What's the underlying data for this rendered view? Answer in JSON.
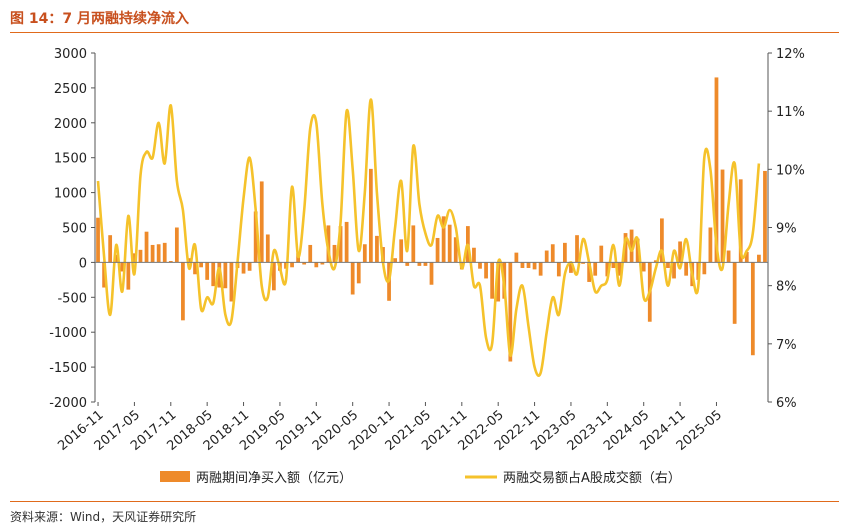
{
  "title": "图 14：7 月两融持续净流入",
  "source": "资料来源：Wind，天风证券研究所",
  "colors": {
    "bar": "#ee8a2a",
    "line": "#f5c22b",
    "accent": "#e06a1b"
  },
  "chart_data": {
    "type": "bar+line",
    "title": "7 月两融持续净流入",
    "x_tick_labels": [
      "2016-11",
      "2017-05",
      "2017-11",
      "2018-05",
      "2018-11",
      "2019-05",
      "2019-11",
      "2020-05",
      "2020-11",
      "2021-05",
      "2021-11",
      "2022-05",
      "2022-11",
      "2023-05",
      "2023-11",
      "2024-05",
      "2024-11",
      "2025-05"
    ],
    "ylim_left": [
      -2000,
      3000
    ],
    "yticks_left": [
      "3000",
      "2500",
      "2000",
      "1500",
      "1000",
      "500",
      "0",
      "-500",
      "-1000",
      "-1500",
      "-2000"
    ],
    "ylim_right": [
      6,
      12
    ],
    "yticks_right": [
      "12%",
      "11%",
      "10%",
      "9%",
      "8%",
      "7%",
      "6%"
    ],
    "series": [
      {
        "name": "两融期间净买入额（亿元）",
        "type": "bar",
        "axis": "left",
        "values": [
          640,
          -360,
          390,
          110,
          -130,
          -390,
          130,
          180,
          440,
          250,
          260,
          280,
          20,
          500,
          -830,
          60,
          -170,
          -70,
          -250,
          -340,
          -360,
          -370,
          -560,
          -80,
          -160,
          -120,
          730,
          1160,
          400,
          -400,
          -120,
          -90,
          -70,
          130,
          -30,
          250,
          -70,
          -30,
          530,
          250,
          520,
          580,
          -460,
          -300,
          260,
          1340,
          380,
          220,
          -550,
          60,
          330,
          -50,
          530,
          -50,
          -50,
          -320,
          350,
          660,
          540,
          360,
          -100,
          520,
          210,
          -90,
          -230,
          -520,
          -560,
          -520,
          -1420,
          140,
          -80,
          -80,
          -100,
          -190,
          170,
          260,
          -200,
          280,
          -150,
          390,
          -20,
          -280,
          -190,
          240,
          -200,
          -80,
          -190,
          420,
          470,
          340,
          -130,
          -850,
          30,
          630,
          -80,
          -230,
          300,
          -190,
          -340,
          -250,
          -170,
          500,
          2650,
          1330,
          170,
          -880,
          1190,
          150,
          -1330,
          110,
          1310
        ],
        "dates_note": "monthly, 2016-11 to 2025-07"
      },
      {
        "name": "两融交易额占A股成交额（右）",
        "type": "line",
        "axis": "right",
        "values": [
          9.8,
          8.5,
          7.5,
          8.7,
          7.9,
          9.2,
          8.2,
          9.9,
          10.3,
          10.2,
          10.8,
          10.1,
          11.1,
          9.8,
          9.3,
          8.3,
          8.7,
          7.6,
          7.8,
          7.7,
          8.3,
          7.5,
          7.4,
          8.4,
          9.5,
          10.2,
          9.3,
          8.0,
          7.8,
          8.6,
          8.3,
          8.1,
          9.7,
          8.5,
          9.3,
          10.7,
          10.8,
          9.4,
          8.6,
          8.3,
          9.1,
          11.0,
          10.0,
          8.6,
          9.6,
          11.2,
          9.6,
          8.4,
          8.1,
          9.0,
          9.8,
          8.6,
          10.4,
          9.4,
          8.9,
          8.7,
          9.2,
          9.0,
          9.3,
          9.0,
          8.3,
          8.7,
          8.0,
          8.0,
          7.1,
          7.0,
          8.4,
          8.0,
          6.8,
          7.6,
          8.0,
          7.3,
          6.6,
          6.5,
          7.2,
          7.8,
          7.5,
          8.2,
          8.4,
          8.2,
          8.8,
          8.4,
          7.9,
          8.0,
          8.1,
          8.7,
          8.0,
          8.8,
          8.6,
          8.8,
          7.8,
          7.9,
          8.3,
          8.6,
          8.0,
          8.6,
          8.3,
          8.8,
          8.2,
          8.0,
          10.2,
          10.0,
          8.7,
          8.3,
          9.4,
          10.1,
          8.6,
          8.6,
          8.9,
          10.1
        ]
      }
    ],
    "legend": [
      "两融期间净买入额（亿元）",
      "两融交易额占A股成交额（右）"
    ]
  }
}
